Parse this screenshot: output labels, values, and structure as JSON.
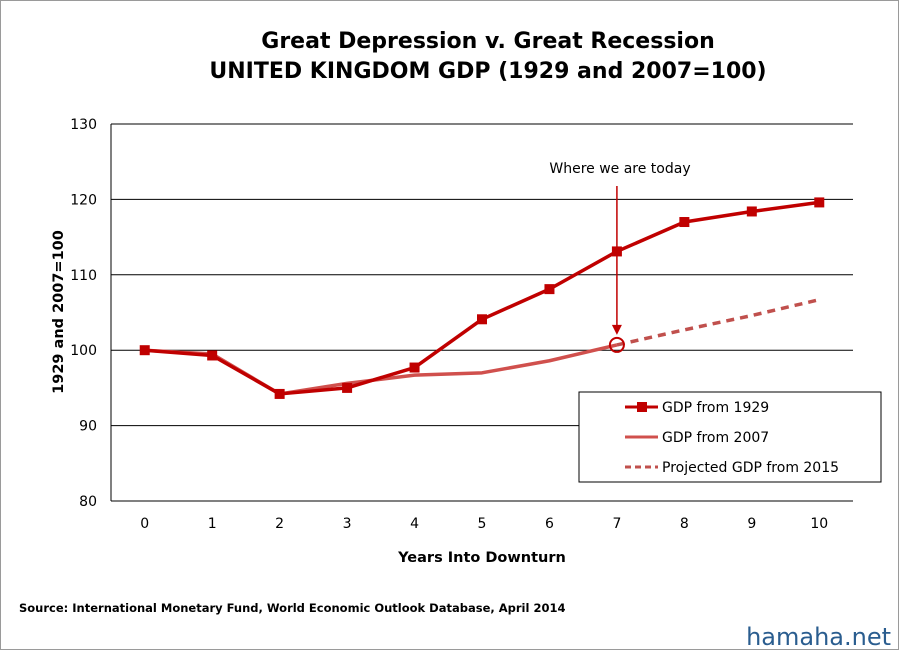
{
  "colors": {
    "series_1929": "#c00000",
    "series_2007": "#d0504d",
    "projected": "#c0504d",
    "grid": "#000000",
    "watermark": "#2a5d8f"
  },
  "source_text": "Source: International Monetary Fund, World Economic Outlook Database, April 2014",
  "watermark": "hamaha.net",
  "chart_data": {
    "type": "line",
    "title_line1": "Great Depression v. Great Recession",
    "title_line2": "UNITED KINGDOM GDP (1929 and 2007=100)",
    "xlabel": "Years Into Downturn",
    "ylabel": "1929 and 2007=100",
    "ylim": [
      80,
      130
    ],
    "yticks": [
      80,
      90,
      100,
      110,
      120,
      130
    ],
    "x": [
      0,
      1,
      2,
      3,
      4,
      5,
      6,
      7,
      8,
      9,
      10
    ],
    "grid": true,
    "legend_position": "right",
    "annotation": {
      "text": "Where we are today",
      "x": 7
    },
    "series": [
      {
        "name": "GDP from 1929",
        "style": "solid-marker",
        "x": [
          0,
          1,
          2,
          3,
          4,
          5,
          6,
          7,
          8,
          9,
          10
        ],
        "values": [
          100.0,
          99.3,
          94.2,
          95.0,
          97.7,
          104.1,
          108.1,
          113.1,
          117.0,
          118.4,
          119.6
        ]
      },
      {
        "name": "GDP from 2007",
        "style": "solid",
        "x": [
          0,
          1,
          2,
          3,
          4,
          5,
          6,
          7
        ],
        "values": [
          100.0,
          99.5,
          94.2,
          95.6,
          96.7,
          97.0,
          98.6,
          100.7
        ]
      },
      {
        "name": "Projected GDP from 2015",
        "style": "dashed",
        "x": [
          7,
          8,
          9,
          10
        ],
        "values": [
          100.7,
          102.7,
          104.6,
          106.7
        ]
      }
    ]
  }
}
